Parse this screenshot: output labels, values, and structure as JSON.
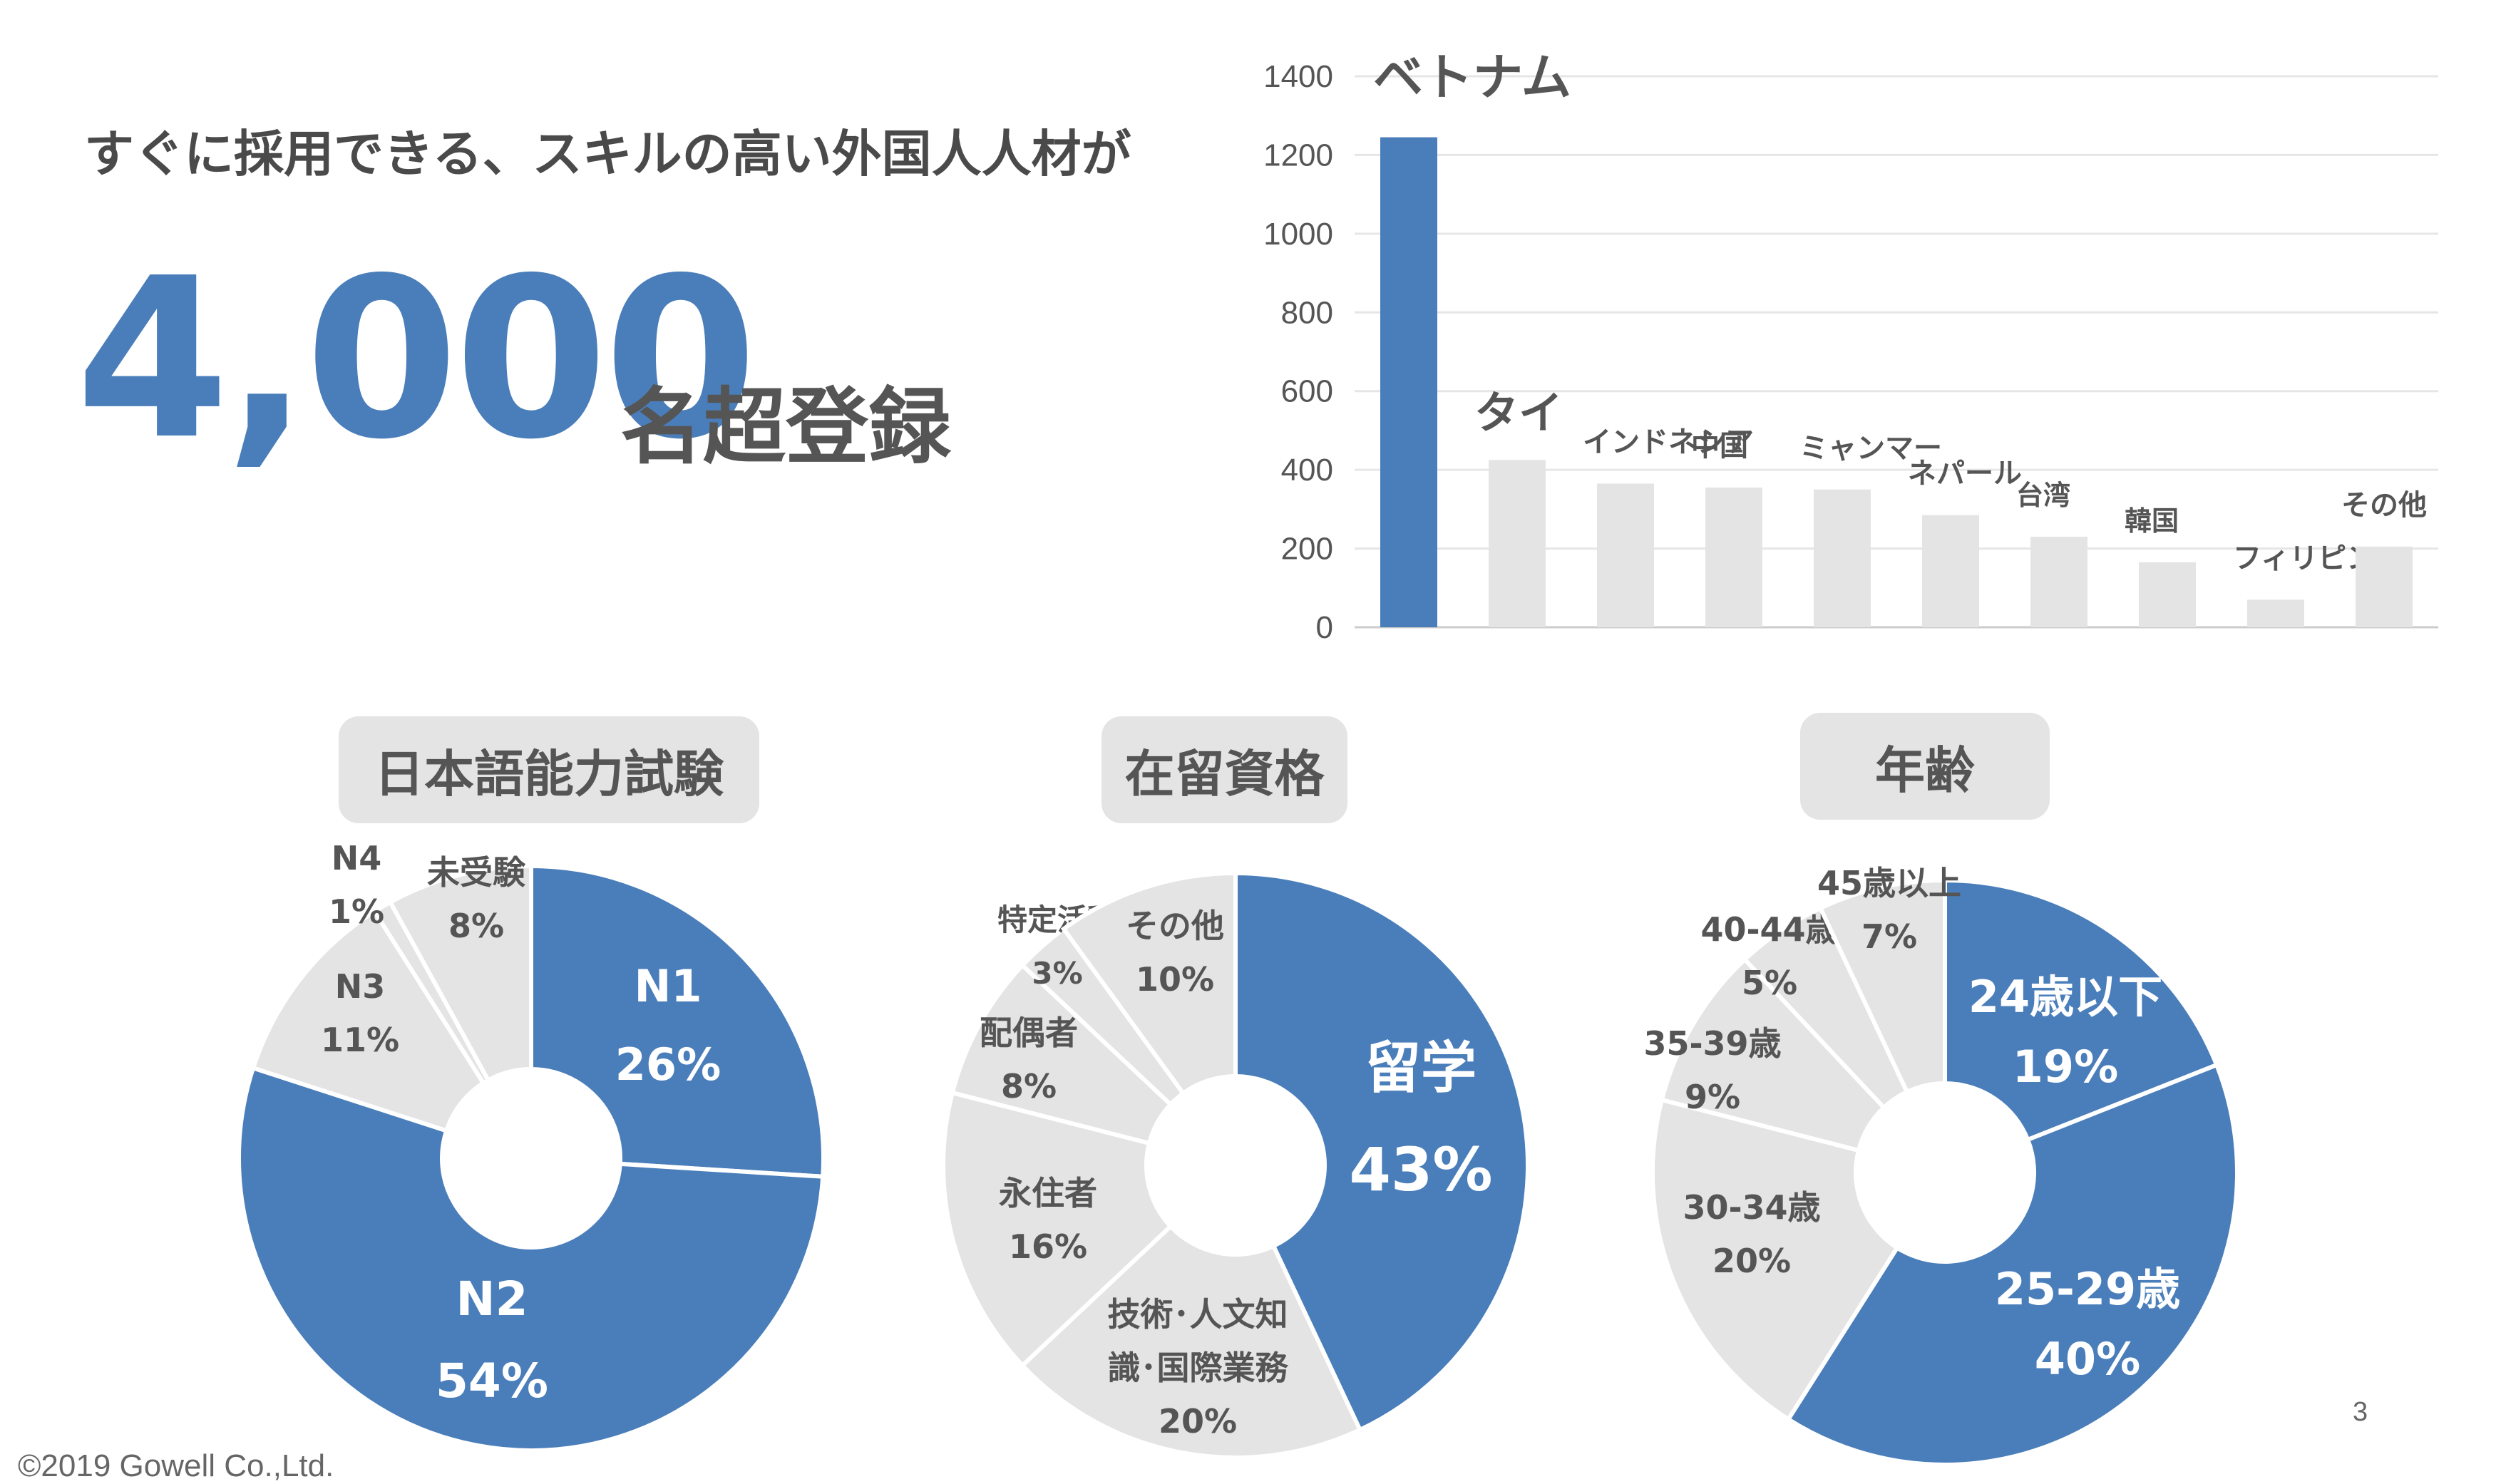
{
  "headline": "すぐに採用できる、スキルの高い外国人人材が",
  "big_number": "4,000",
  "big_suffix": "名超登録",
  "footer": {
    "copyright": "©2019 Gowell Co.,Ltd.",
    "page_number": "3"
  },
  "colors": {
    "accent": "#4a7eba",
    "muted": "#e4e4e4",
    "text": "#555555"
  },
  "chart_data": [
    {
      "type": "bar",
      "categories": [
        "ベトナム",
        "タイ",
        "インドネシア",
        "中国",
        "ミャンマー",
        "ネパール",
        "台湾",
        "韓国",
        "フィリピン",
        "その他"
      ],
      "values": [
        1245,
        425,
        365,
        355,
        350,
        285,
        230,
        165,
        70,
        205
      ],
      "highlight": [
        true,
        false,
        false,
        false,
        false,
        false,
        false,
        false,
        false,
        false
      ],
      "ylim": [
        0,
        1400
      ],
      "yticks": [
        0,
        200,
        400,
        600,
        800,
        1000,
        1200,
        1400
      ],
      "grid": true
    },
    {
      "type": "pie",
      "title": "日本語能力試験",
      "slices": [
        {
          "label": "N1",
          "value": 26,
          "pct": "26%",
          "highlight": true
        },
        {
          "label": "N2",
          "value": 54,
          "pct": "54%",
          "highlight": true
        },
        {
          "label": "N3",
          "value": 11,
          "pct": "11%",
          "highlight": false
        },
        {
          "label": "N4",
          "value": 1,
          "pct": "1%",
          "highlight": false
        },
        {
          "label": "未受験",
          "value": 8,
          "pct": "8%",
          "highlight": false
        }
      ]
    },
    {
      "type": "pie",
      "title": "在留資格",
      "slices": [
        {
          "label": "留学",
          "value": 43,
          "pct": "43%",
          "highlight": true
        },
        {
          "label": "技術･人文知識･国際業務",
          "value": 20,
          "pct": "20%",
          "highlight": false
        },
        {
          "label": "永住者",
          "value": 16,
          "pct": "16%",
          "highlight": false
        },
        {
          "label": "配偶者",
          "value": 8,
          "pct": "8%",
          "highlight": false
        },
        {
          "label": "特定活動",
          "value": 3,
          "pct": "3%",
          "highlight": false
        },
        {
          "label": "その他",
          "value": 10,
          "pct": "10%",
          "highlight": false
        }
      ]
    },
    {
      "type": "pie",
      "title": "年齢",
      "slices": [
        {
          "label": "24歳以下",
          "value": 19,
          "pct": "19%",
          "highlight": true
        },
        {
          "label": "25-29歳",
          "value": 40,
          "pct": "40%",
          "highlight": true
        },
        {
          "label": "30-34歳",
          "value": 20,
          "pct": "20%",
          "highlight": false
        },
        {
          "label": "35-39歳",
          "value": 9,
          "pct": "9%",
          "highlight": false
        },
        {
          "label": "40-44歳",
          "value": 5,
          "pct": "5%",
          "highlight": false
        },
        {
          "label": "45歳以上",
          "value": 7,
          "pct": "7%",
          "highlight": false
        }
      ]
    }
  ]
}
